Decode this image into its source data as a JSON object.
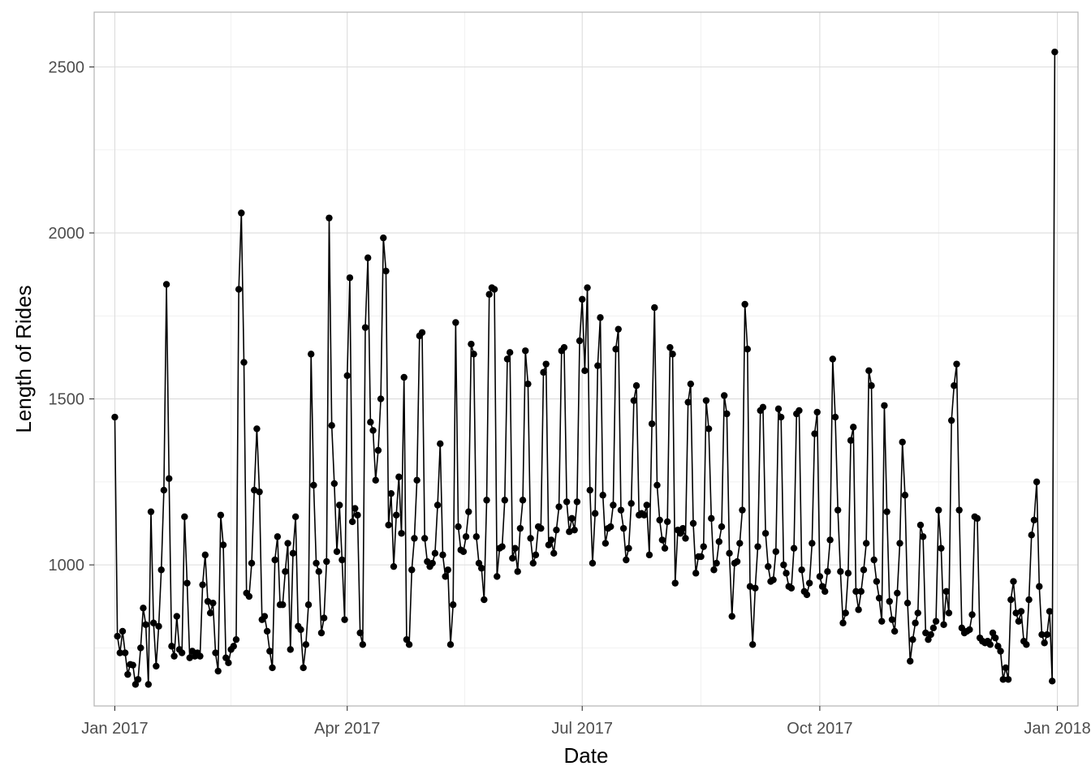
{
  "chart_data": {
    "type": "line",
    "xlabel": "Date",
    "ylabel": "Length of Rides",
    "xlim": [
      "2016-12-24",
      "2018-01-09"
    ],
    "ylim": [
      575,
      2665
    ],
    "x_ticks": [
      {
        "date": "2017-01-01",
        "label": "Jan 2017"
      },
      {
        "date": "2017-04-01",
        "label": "Apr 2017"
      },
      {
        "date": "2017-07-01",
        "label": "Jul 2017"
      },
      {
        "date": "2017-10-01",
        "label": "Oct 2017"
      },
      {
        "date": "2018-01-01",
        "label": "Jan 2018"
      }
    ],
    "y_ticks": [
      1000,
      1500,
      2000,
      2500
    ],
    "grid": true,
    "marker": "point",
    "series": [
      {
        "color": "#000000",
        "x_start": "2017-01-01",
        "x_step": "1 day",
        "values": [
          1445,
          785,
          735,
          800,
          735,
          670,
          700,
          698,
          640,
          655,
          750,
          870,
          820,
          640,
          1160,
          825,
          695,
          815,
          985,
          1225,
          1845,
          1260,
          755,
          725,
          845,
          745,
          735,
          1145,
          945,
          720,
          740,
          725,
          735,
          725,
          940,
          1030,
          890,
          855,
          885,
          735,
          680,
          1150,
          1060,
          720,
          705,
          745,
          755,
          775,
          1830,
          2060,
          1610,
          915,
          905,
          1005,
          1225,
          1410,
          1220,
          835,
          845,
          800,
          740,
          690,
          1015,
          1085,
          880,
          880,
          980,
          1065,
          745,
          1035,
          1145,
          815,
          805,
          690,
          760,
          880,
          1635,
          1240,
          1005,
          980,
          795,
          840,
          1010,
          2045,
          1420,
          1245,
          1040,
          1180,
          1015,
          835,
          1570,
          1865,
          1130,
          1170,
          1150,
          795,
          760,
          1715,
          1925,
          1430,
          1405,
          1255,
          1345,
          1500,
          1985,
          1885,
          1120,
          1215,
          995,
          1150,
          1265,
          1095,
          1565,
          775,
          760,
          985,
          1080,
          1255,
          1690,
          1700,
          1080,
          1010,
          995,
          1005,
          1035,
          1180,
          1365,
          1030,
          965,
          985,
          760,
          880,
          1730,
          1115,
          1045,
          1040,
          1085,
          1160,
          1665,
          1635,
          1085,
          1005,
          990,
          895,
          1195,
          1815,
          1835,
          1830,
          965,
          1050,
          1055,
          1195,
          1620,
          1640,
          1020,
          1050,
          980,
          1110,
          1195,
          1645,
          1545,
          1080,
          1005,
          1030,
          1115,
          1110,
          1580,
          1605,
          1060,
          1075,
          1035,
          1105,
          1175,
          1645,
          1655,
          1190,
          1100,
          1140,
          1105,
          1190,
          1675,
          1800,
          1585,
          1835,
          1225,
          1005,
          1155,
          1600,
          1745,
          1210,
          1065,
          1110,
          1115,
          1180,
          1650,
          1710,
          1165,
          1110,
          1015,
          1050,
          1185,
          1495,
          1540,
          1150,
          1155,
          1150,
          1180,
          1030,
          1425,
          1775,
          1240,
          1135,
          1075,
          1050,
          1130,
          1655,
          1635,
          945,
          1105,
          1095,
          1110,
          1080,
          1490,
          1545,
          1125,
          975,
          1025,
          1025,
          1055,
          1495,
          1410,
          1140,
          985,
          1005,
          1070,
          1115,
          1510,
          1455,
          1035,
          845,
          1005,
          1010,
          1065,
          1165,
          1785,
          1650,
          935,
          760,
          930,
          1055,
          1465,
          1475,
          1095,
          995,
          950,
          955,
          1040,
          1470,
          1445,
          1000,
          975,
          935,
          930,
          1050,
          1455,
          1465,
          985,
          920,
          910,
          945,
          1065,
          1395,
          1460,
          965,
          935,
          920,
          980,
          1075,
          1620,
          1445,
          1165,
          980,
          825,
          855,
          975,
          1375,
          1415,
          920,
          865,
          920,
          985,
          1065,
          1585,
          1540,
          1015,
          950,
          900,
          830,
          1480,
          1160,
          890,
          835,
          800,
          915,
          1065,
          1370,
          1210,
          885,
          710,
          775,
          825,
          855,
          1120,
          1085,
          795,
          775,
          790,
          810,
          830,
          1165,
          1050,
          820,
          920,
          855,
          1435,
          1540,
          1605,
          1165,
          810,
          795,
          800,
          805,
          850,
          1145,
          1140,
          780,
          770,
          765,
          770,
          760,
          795,
          780,
          755,
          740,
          655,
          690,
          655,
          895,
          950,
          855,
          830,
          860,
          770,
          760,
          895,
          1090,
          1135,
          1250,
          935,
          790,
          765,
          790,
          860,
          650,
          2545
        ]
      }
    ]
  }
}
